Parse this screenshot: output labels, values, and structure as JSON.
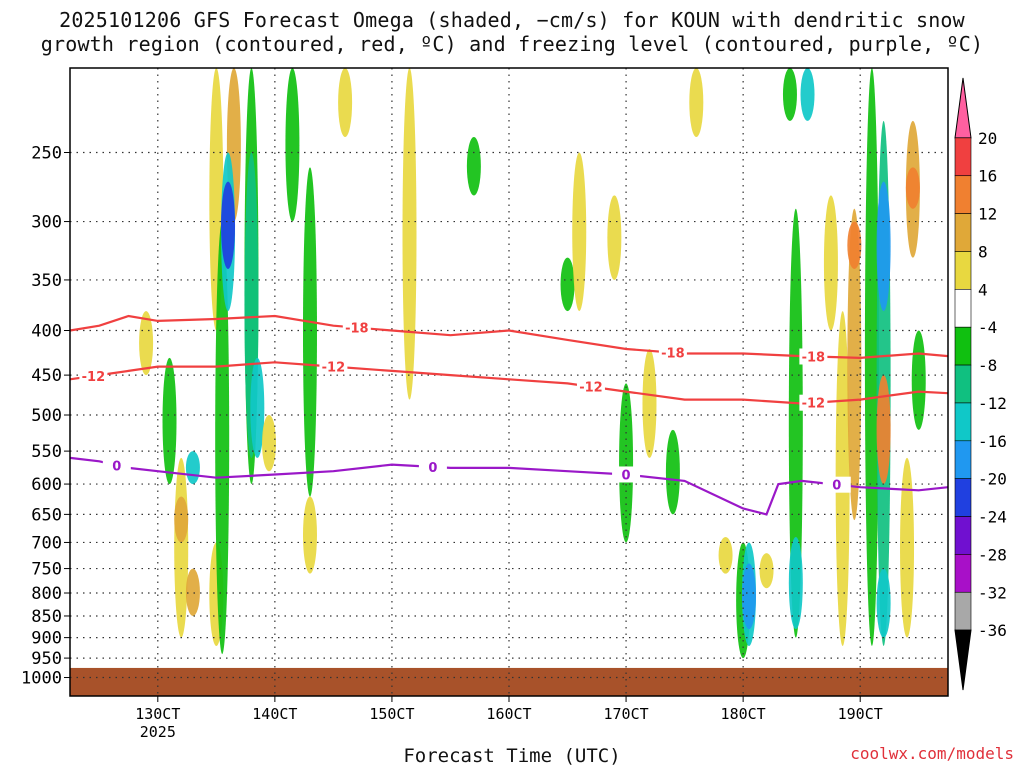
{
  "title_line1": "2025101206 GFS Forecast Omega (shaded, −cm/s) for KOUN with dendritic snow",
  "title_line2": "growth region (contoured, red, ºC) and freezing level (contoured, purple, ºC)",
  "xlabel": "Forecast Time (UTC)",
  "credit": "coolwx.com/models",
  "chart_data": {
    "type": "heatmap",
    "title": "2025101206 GFS Forecast Omega (shaded, −cm/s) for KOUN with dendritic snow growth region (contoured, red, ºC) and freezing level (contoured, purple, ºC)",
    "xlabel": "Forecast Time (UTC)",
    "ylabel": "",
    "x_unit": "day of month (October 2025, 00 UTC)",
    "x_ticks": [
      {
        "value": 13,
        "label": "130CT",
        "sublabel": "2025"
      },
      {
        "value": 14,
        "label": "140CT"
      },
      {
        "value": 15,
        "label": "150CT"
      },
      {
        "value": 16,
        "label": "160CT"
      },
      {
        "value": 17,
        "label": "170CT"
      },
      {
        "value": 18,
        "label": "180CT"
      },
      {
        "value": 19,
        "label": "190CT"
      }
    ],
    "xlim": [
      12.25,
      19.75
    ],
    "y_ticks": [
      250,
      300,
      350,
      400,
      450,
      500,
      550,
      600,
      650,
      700,
      750,
      800,
      850,
      900,
      950,
      1000
    ],
    "ylim": [
      1050,
      200
    ],
    "y_scale": "log (pressure, hPa)",
    "grid": true,
    "ground_fill_color": "#a8522a",
    "ground_top_hPa": 975,
    "colorbar": {
      "labels": [
        "20",
        "16",
        "12",
        "8",
        "4",
        "-4",
        "-8",
        "-12",
        "-16",
        "-20",
        "-24",
        "-28",
        "-32",
        "-36"
      ],
      "colors": [
        "#ff60a0",
        "#f04040",
        "#f08030",
        "#e0a838",
        "#e8d840",
        "#ffffff",
        "#10c010",
        "#10c080",
        "#10c8c8",
        "#2098f0",
        "#2040e0",
        "#7010d0",
        "#a810c8",
        "#a8a8a8",
        "#000000"
      ]
    },
    "omega_blobs": [
      {
        "x": 12.9,
        "p1": 380,
        "p2": 450,
        "c": "#e8d840"
      },
      {
        "x": 13.1,
        "p1": 430,
        "p2": 600,
        "c": "#10c010"
      },
      {
        "x": 13.2,
        "p1": 560,
        "p2": 900,
        "c": "#e8d840"
      },
      {
        "x": 13.2,
        "p1": 620,
        "p2": 700,
        "c": "#e0a838"
      },
      {
        "x": 13.3,
        "p1": 550,
        "p2": 600,
        "c": "#10c8c8"
      },
      {
        "x": 13.5,
        "p1": 200,
        "p2": 400,
        "c": "#e8d840"
      },
      {
        "x": 13.65,
        "p1": 200,
        "p2": 300,
        "c": "#e0a838"
      },
      {
        "x": 13.3,
        "p1": 750,
        "p2": 850,
        "c": "#e0a838"
      },
      {
        "x": 13.5,
        "p1": 700,
        "p2": 920,
        "c": "#e8d840"
      },
      {
        "x": 13.55,
        "p1": 300,
        "p2": 940,
        "c": "#10c010"
      },
      {
        "x": 13.6,
        "p1": 250,
        "p2": 380,
        "c": "#10c8c8"
      },
      {
        "x": 13.6,
        "p1": 270,
        "p2": 340,
        "c": "#2040e0"
      },
      {
        "x": 13.8,
        "p1": 200,
        "p2": 600,
        "c": "#10c010"
      },
      {
        "x": 13.8,
        "p1": 250,
        "p2": 560,
        "c": "#10c080"
      },
      {
        "x": 13.85,
        "p1": 430,
        "p2": 560,
        "c": "#10c8c8"
      },
      {
        "x": 13.95,
        "p1": 500,
        "p2": 580,
        "c": "#e8d840"
      },
      {
        "x": 14.15,
        "p1": 200,
        "p2": 300,
        "c": "#10c010"
      },
      {
        "x": 14.3,
        "p1": 260,
        "p2": 620,
        "c": "#10c010"
      },
      {
        "x": 14.3,
        "p1": 620,
        "p2": 760,
        "c": "#e8d840"
      },
      {
        "x": 14.6,
        "p1": 200,
        "p2": 240,
        "c": "#e8d840"
      },
      {
        "x": 15.15,
        "p1": 200,
        "p2": 480,
        "c": "#e8d840"
      },
      {
        "x": 15.7,
        "p1": 240,
        "p2": 280,
        "c": "#10c010"
      },
      {
        "x": 16.5,
        "p1": 330,
        "p2": 380,
        "c": "#10c010"
      },
      {
        "x": 16.6,
        "p1": 250,
        "p2": 380,
        "c": "#e8d840"
      },
      {
        "x": 16.9,
        "p1": 280,
        "p2": 350,
        "c": "#e8d840"
      },
      {
        "x": 17.0,
        "p1": 460,
        "p2": 700,
        "c": "#10c010"
      },
      {
        "x": 17.2,
        "p1": 420,
        "p2": 560,
        "c": "#e8d840"
      },
      {
        "x": 17.4,
        "p1": 520,
        "p2": 650,
        "c": "#10c010"
      },
      {
        "x": 17.6,
        "p1": 200,
        "p2": 240,
        "c": "#e8d840"
      },
      {
        "x": 17.85,
        "p1": 690,
        "p2": 760,
        "c": "#e8d840"
      },
      {
        "x": 18.0,
        "p1": 700,
        "p2": 950,
        "c": "#10c010"
      },
      {
        "x": 18.05,
        "p1": 700,
        "p2": 920,
        "c": "#10c8c8"
      },
      {
        "x": 18.05,
        "p1": 740,
        "p2": 880,
        "c": "#2098f0"
      },
      {
        "x": 18.2,
        "p1": 720,
        "p2": 790,
        "c": "#e8d840"
      },
      {
        "x": 18.4,
        "p1": 200,
        "p2": 230,
        "c": "#10c010"
      },
      {
        "x": 18.45,
        "p1": 290,
        "p2": 900,
        "c": "#10c010"
      },
      {
        "x": 18.45,
        "p1": 690,
        "p2": 880,
        "c": "#10c8c8"
      },
      {
        "x": 18.55,
        "p1": 200,
        "p2": 230,
        "c": "#10c8c8"
      },
      {
        "x": 18.75,
        "p1": 280,
        "p2": 400,
        "c": "#e8d840"
      },
      {
        "x": 18.85,
        "p1": 380,
        "p2": 920,
        "c": "#e8d840"
      },
      {
        "x": 18.95,
        "p1": 290,
        "p2": 660,
        "c": "#e0a838"
      },
      {
        "x": 18.95,
        "p1": 300,
        "p2": 340,
        "c": "#f08030"
      },
      {
        "x": 19.1,
        "p1": 200,
        "p2": 920,
        "c": "#10c010"
      },
      {
        "x": 19.2,
        "p1": 230,
        "p2": 920,
        "c": "#10c080"
      },
      {
        "x": 19.2,
        "p1": 270,
        "p2": 380,
        "c": "#2098f0"
      },
      {
        "x": 19.2,
        "p1": 450,
        "p2": 600,
        "c": "#f08030"
      },
      {
        "x": 19.2,
        "p1": 750,
        "p2": 900,
        "c": "#10c8c8"
      },
      {
        "x": 19.4,
        "p1": 560,
        "p2": 900,
        "c": "#e8d840"
      },
      {
        "x": 19.45,
        "p1": 230,
        "p2": 330,
        "c": "#e0a838"
      },
      {
        "x": 19.45,
        "p1": 260,
        "p2": 290,
        "c": "#f08030"
      },
      {
        "x": 19.5,
        "p1": 400,
        "p2": 520,
        "c": "#10c010"
      }
    ],
    "contours": [
      {
        "name": "-18",
        "color": "#f04040",
        "x": [
          12.25,
          12.5,
          12.75,
          13.0,
          13.5,
          14.0,
          14.5,
          15.0,
          15.5,
          16.0,
          16.5,
          17.0,
          17.5,
          18.0,
          18.5,
          19.0,
          19.5,
          19.75
        ],
        "p": [
          400,
          395,
          385,
          390,
          388,
          385,
          395,
          400,
          405,
          400,
          410,
          420,
          425,
          425,
          428,
          430,
          425,
          428
        ],
        "labels": [
          {
            "text": "-18",
            "x": 14.7
          },
          {
            "text": "-18",
            "x": 17.4
          },
          {
            "text": "-18",
            "x": 18.6
          }
        ]
      },
      {
        "name": "-12",
        "color": "#f04040",
        "x": [
          12.25,
          12.5,
          12.75,
          13.0,
          13.5,
          14.0,
          14.5,
          15.0,
          15.5,
          16.0,
          16.5,
          17.0,
          17.5,
          18.0,
          18.5,
          19.0,
          19.5,
          19.75
        ],
        "p": [
          455,
          450,
          445,
          440,
          440,
          435,
          440,
          445,
          450,
          455,
          460,
          470,
          480,
          480,
          485,
          480,
          470,
          472
        ],
        "labels": [
          {
            "text": "-12",
            "x": 12.45
          },
          {
            "text": "-12",
            "x": 14.5
          },
          {
            "text": "-12",
            "x": 16.7
          },
          {
            "text": "-12",
            "x": 18.6
          }
        ]
      },
      {
        "name": "0",
        "color": "#9a18c8",
        "x": [
          12.25,
          12.5,
          12.75,
          13.0,
          13.5,
          14.0,
          14.5,
          15.0,
          15.5,
          16.0,
          16.5,
          17.0,
          17.5,
          18.0,
          18.2,
          18.3,
          18.5,
          19.0,
          19.5,
          19.75
        ],
        "p": [
          560,
          565,
          575,
          580,
          590,
          585,
          580,
          570,
          575,
          575,
          580,
          585,
          595,
          640,
          650,
          600,
          595,
          605,
          610,
          605
        ],
        "labels": [
          {
            "text": "0",
            "x": 12.65
          },
          {
            "text": "0",
            "x": 15.35
          },
          {
            "text": "0",
            "x": 17.0
          },
          {
            "text": "0",
            "x": 18.8
          }
        ]
      }
    ]
  }
}
